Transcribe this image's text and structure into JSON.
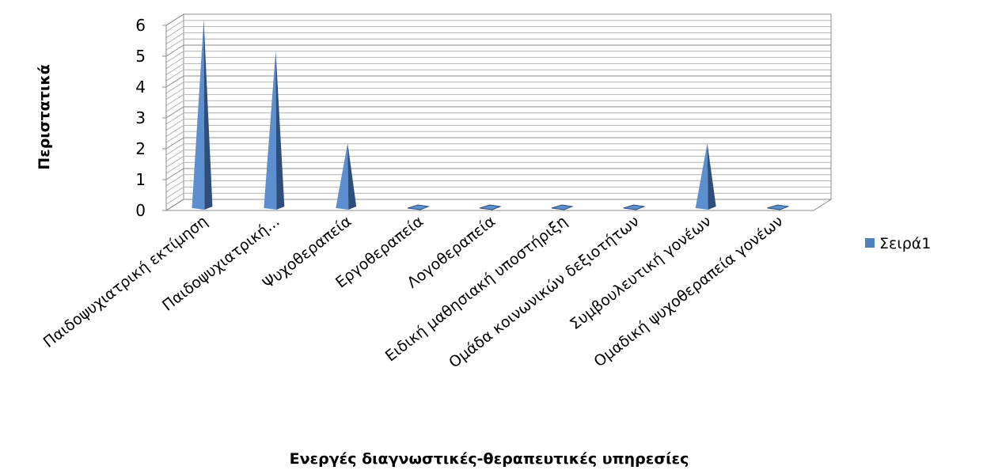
{
  "chart_data": {
    "type": "bar",
    "subtype": "3d-pyramid",
    "categories": [
      "Παιδοψυχιατρική εκτίμηση",
      "Παιδοψυχιατρική...",
      "Ψυχοθεραπεία",
      "Εργοθεραπεία",
      "Λογοθεραπεία",
      "Ειδική μαθησιακή υποστήριξη",
      "Ομάδα κοινωνικών δεξιοτήτων",
      "Συμβουλευτική γονέων",
      "Ομαδική ψυχοθεραπεία γονέων"
    ],
    "series": [
      {
        "name": "Σειρά1",
        "values": [
          6,
          5,
          2,
          0,
          0,
          0,
          0,
          2,
          0
        ],
        "color": "#4f81bd"
      }
    ],
    "xlabel": "Ενεργές διαγνωστικές-θεραπευτικές υπηρεσίες",
    "ylabel": "Περιστατικά",
    "ylim": [
      0,
      6
    ],
    "yticks": [
      0,
      1,
      2,
      3,
      4,
      5,
      6
    ],
    "grid": true,
    "legend_position": "right"
  }
}
